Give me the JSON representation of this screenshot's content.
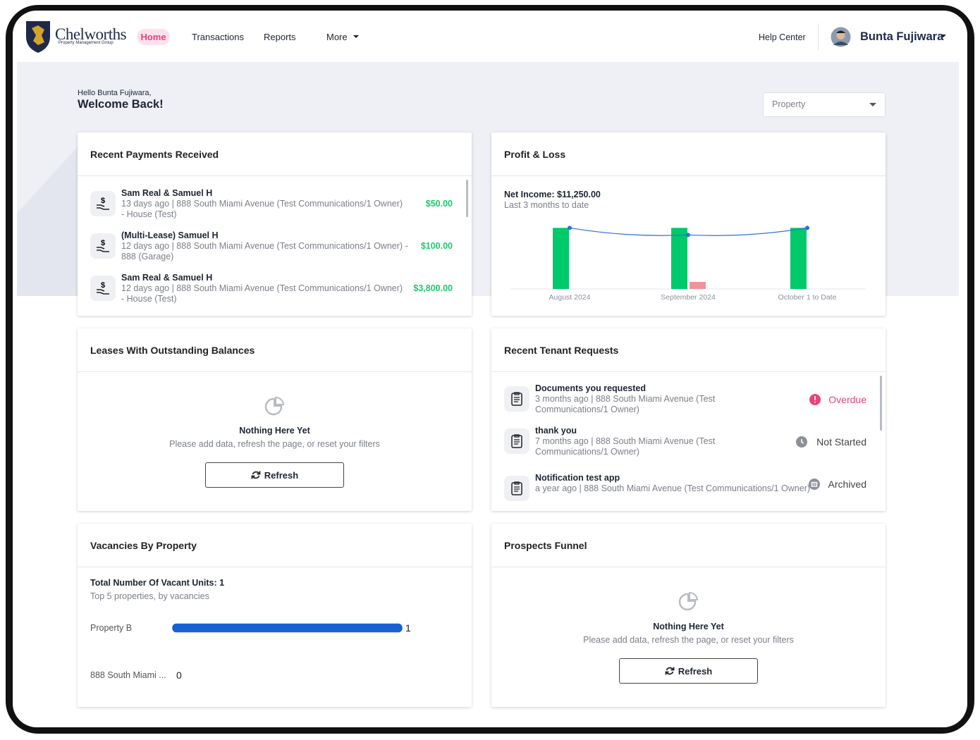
{
  "nav": {
    "brand": "Chelworths",
    "brand_sub": "Property Management Group",
    "links": [
      "Home",
      "Transactions",
      "Reports",
      "More"
    ],
    "help": "Help Center",
    "user": "Bunta Fujiwara"
  },
  "greeting": {
    "hello": "Hello Bunta Fujiwara,",
    "welcome": "Welcome Back!"
  },
  "filter": "Property",
  "payments": {
    "title": "Recent Payments Received",
    "items": [
      {
        "name": "Sam Real & Samuel H",
        "meta": "13 days ago | 888 South Miami Avenue (Test Communications/1 Owner) - House (Test)",
        "amount": "$50.00"
      },
      {
        "name": "(Multi-Lease) Samuel H",
        "meta": "12 days ago | 888 South Miami Avenue (Test Communications/1 Owner) - 888 (Garage)",
        "amount": "$100.00"
      },
      {
        "name": "Sam Real & Samuel H",
        "meta": "12 days ago | 888 South Miami Avenue (Test Communications/1 Owner) - House (Test)",
        "amount": "$3,800.00"
      }
    ]
  },
  "profit_loss": {
    "title": "Profit & Loss",
    "net_income": "Net Income: $11,250.00",
    "period": "Last 3 months to date",
    "chart": {
      "type": "bar",
      "categories": [
        "August 2024",
        "September 2024",
        "October 1 to Date"
      ],
      "ylim": [
        0,
        4500
      ],
      "series": [
        {
          "color": "#00c96b",
          "values": [
            3900,
            3900,
            3900
          ]
        },
        {
          "color": "#f1939c",
          "values": [
            0,
            450,
            0
          ]
        },
        {
          "type": "line",
          "color": "#2f6fd6",
          "values": [
            3900,
            3450,
            3900
          ]
        }
      ]
    }
  },
  "leases": {
    "title": "Leases With Outstanding Balances",
    "empty_title": "Nothing Here Yet",
    "empty_text": "Please add data, refresh the page, or reset your filters",
    "button": "Refresh"
  },
  "requests": {
    "title": "Recent Tenant Requests",
    "items": [
      {
        "title": "Documents you requested",
        "meta": "3 months ago | 888 South Miami Avenue (Test Communications/1 Owner)",
        "status": "Overdue"
      },
      {
        "title": "thank you",
        "meta": "7 months ago | 888 South Miami Avenue (Test Communications/1 Owner)",
        "status": "Not Started"
      },
      {
        "title": "Notification test app",
        "meta": "a year ago | 888 South Miami Avenue (Test Communications/1 Owner)",
        "status": "Archived"
      }
    ]
  },
  "vacancies": {
    "title": "Vacancies By Property",
    "total": "Total Number Of Vacant Units: 1",
    "subtitle": "Top 5 properties, by vacancies",
    "chart": {
      "type": "bar",
      "orientation": "horizontal",
      "categories": [
        "Property B",
        "888 South Miami ..."
      ],
      "values": [
        1,
        0
      ],
      "xlim": [
        0,
        1
      ],
      "color": "#1a5fd6"
    }
  },
  "prospects": {
    "title": "Prospects Funnel",
    "empty_title": "Nothing Here Yet",
    "empty_text": "Please add data, refresh the page, or reset your filters",
    "button": "Refresh"
  }
}
